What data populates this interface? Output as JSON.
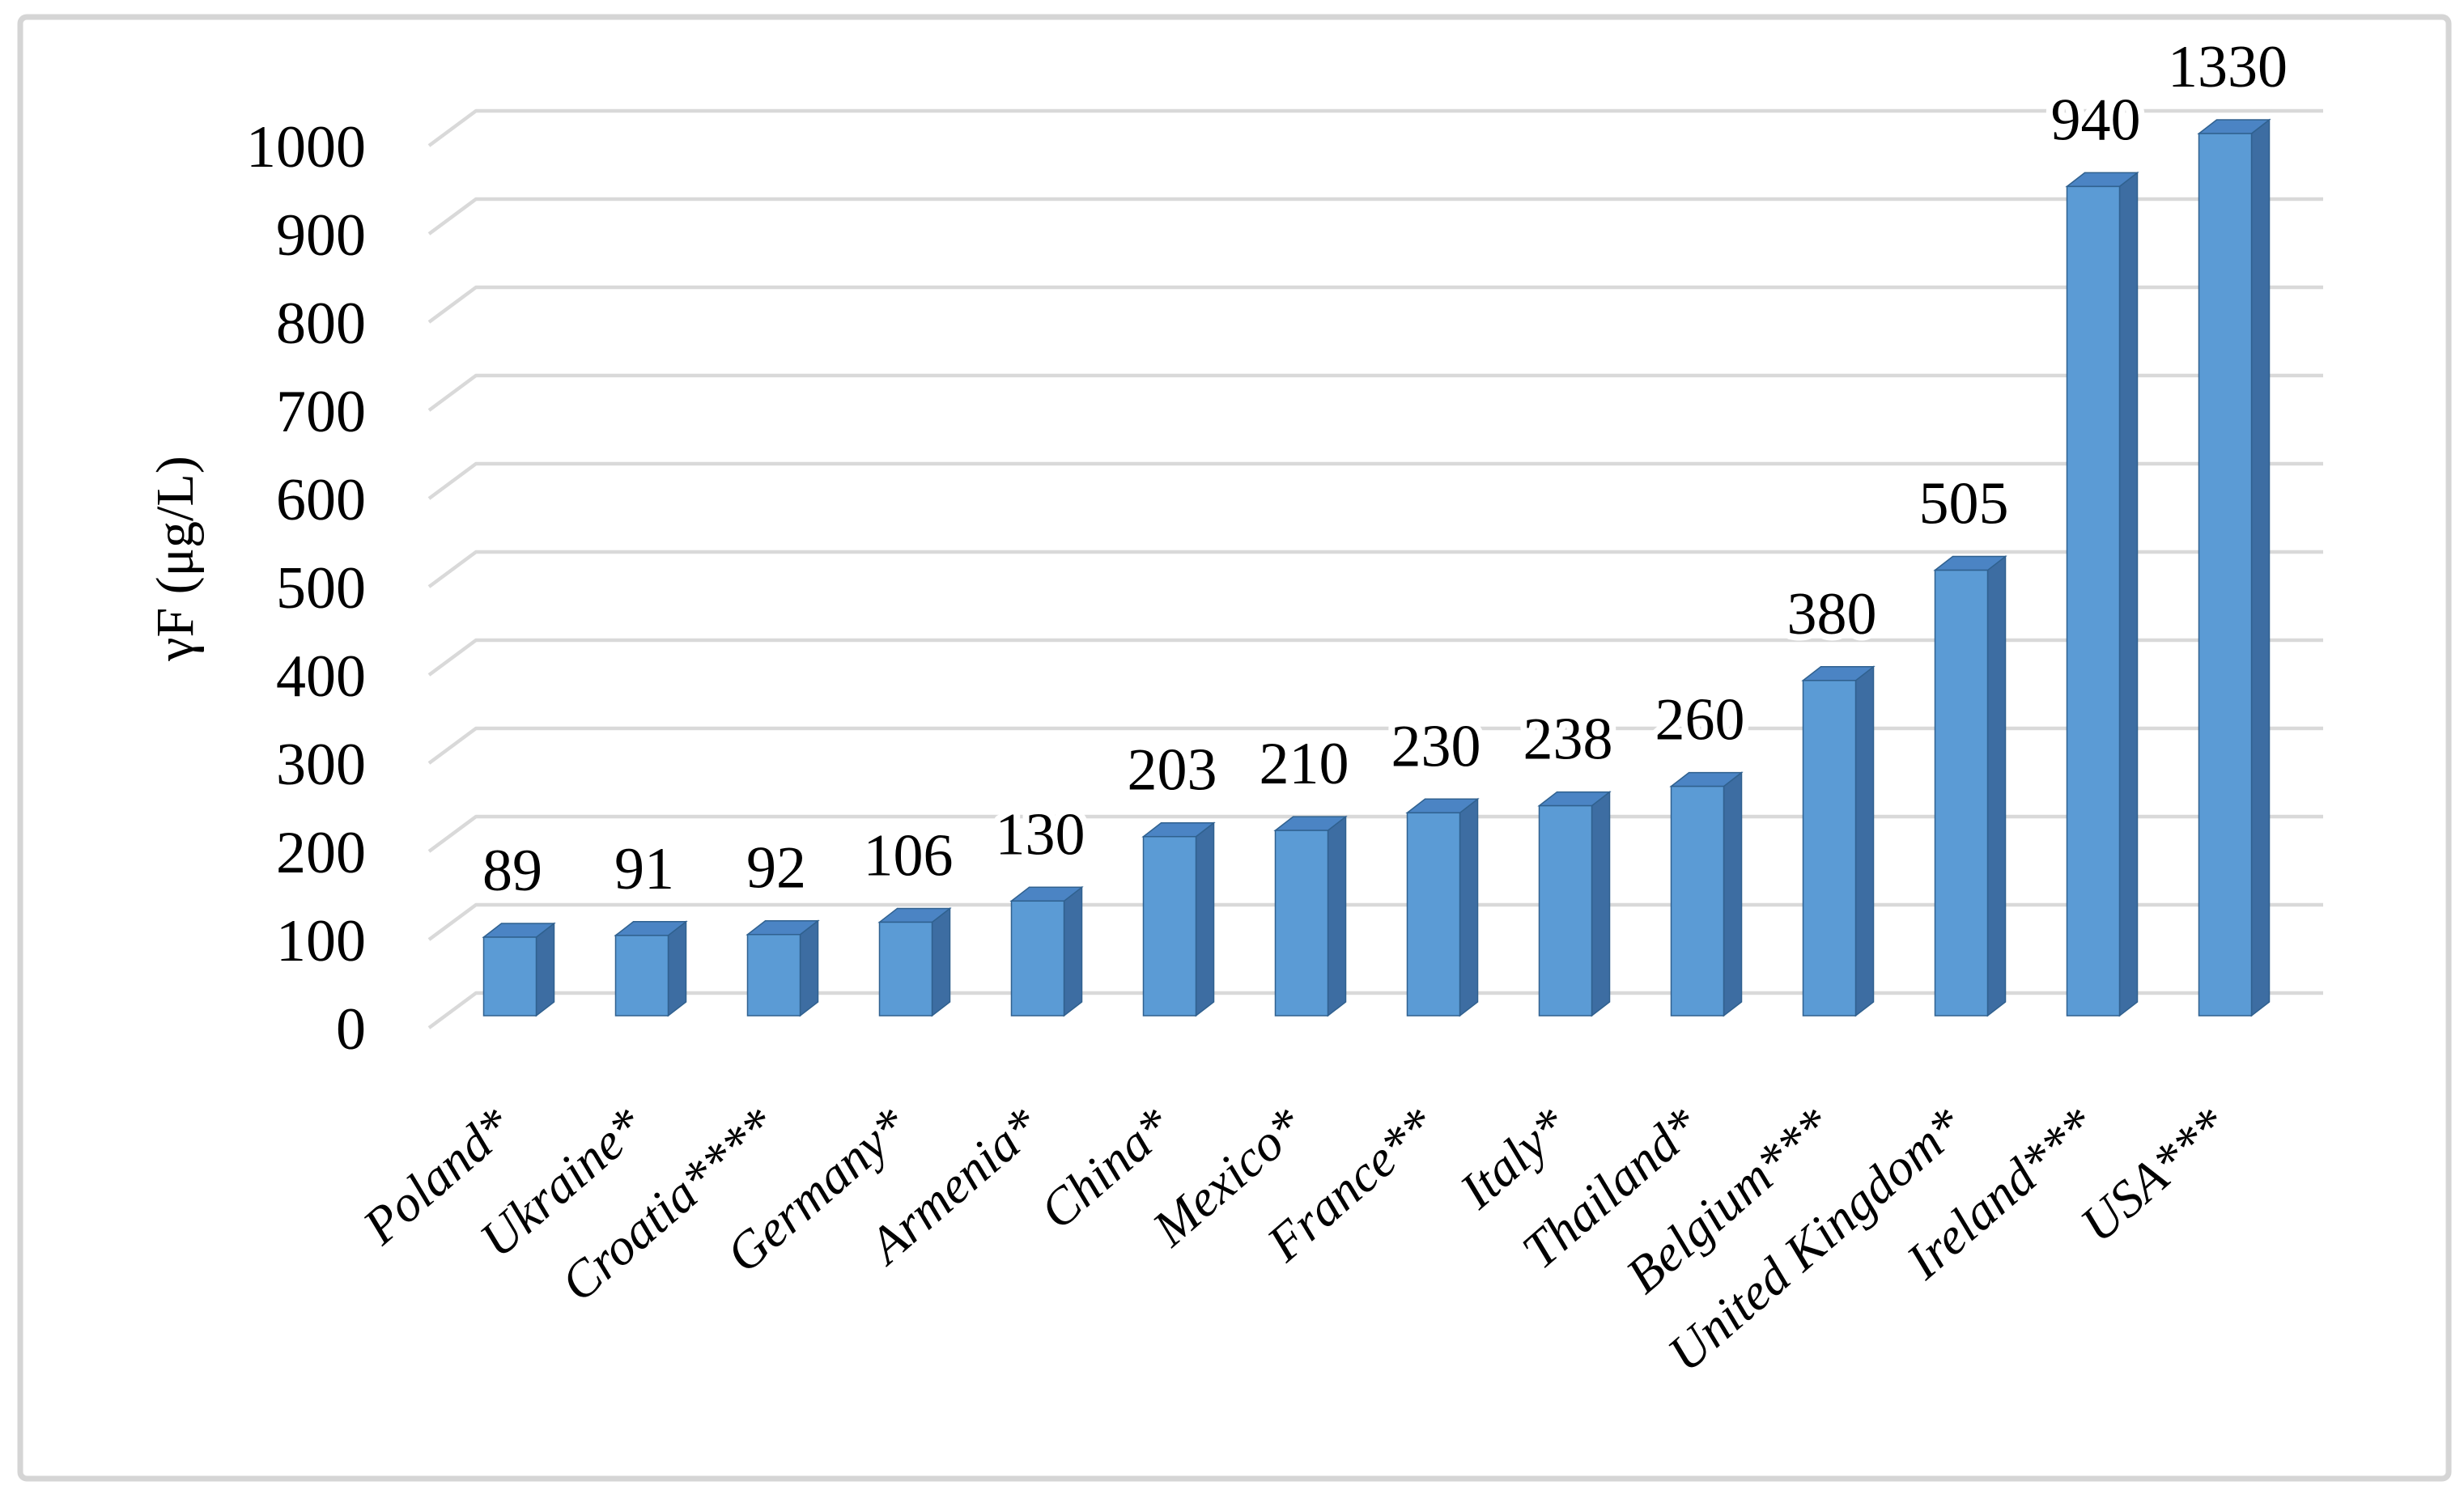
{
  "chart_data": {
    "type": "bar",
    "style": "3d-column",
    "title": "",
    "xlabel": "",
    "ylabel": "γF (μg/L)",
    "categories": [
      "Poland*",
      "Ukraine*",
      "Croatia****",
      "Germany*",
      "Armenia*",
      "China*",
      "Mexico*",
      "France**",
      "Italy*",
      "Thailand*",
      "Belgium***",
      "United Kingdom*",
      "Ireland***",
      "USA***"
    ],
    "values": [
      89,
      91,
      92,
      106,
      130,
      203,
      210,
      230,
      238,
      260,
      380,
      505,
      940,
      1330
    ],
    "bar_value_labels": [
      "89",
      "91",
      "92",
      "106",
      "130",
      "203",
      "210",
      "230",
      "238",
      "260",
      "380",
      "505",
      "940",
      "1330"
    ],
    "ylim": [
      0,
      1000
    ],
    "yticks": [
      "0",
      "100",
      "200",
      "300",
      "400",
      "500",
      "600",
      "700",
      "800",
      "900",
      "1000"
    ],
    "grid": true,
    "legend": "none",
    "colors": {
      "bar_front": "#5B9BD5",
      "bar_top": "#4B84C4",
      "bar_side": "#3D6DA2",
      "bar_outline": "#30618F",
      "gridline": "#D9D9D9",
      "border": "#D5D5D5",
      "text": "#000000"
    }
  }
}
